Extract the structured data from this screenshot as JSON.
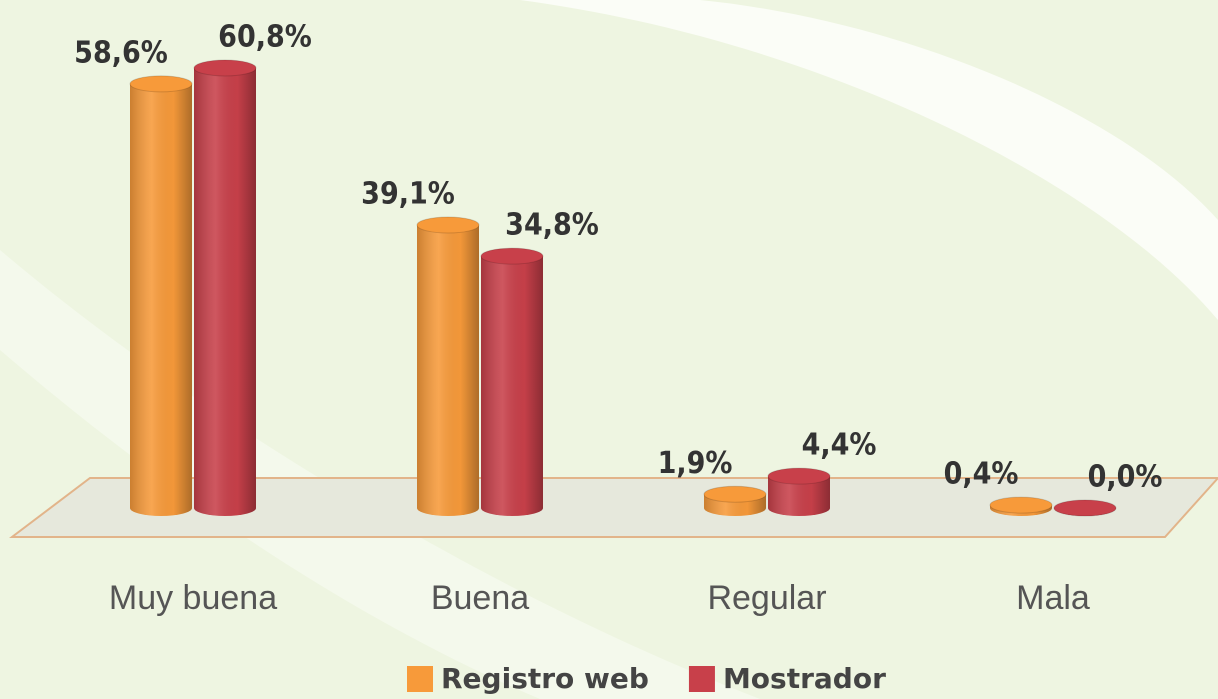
{
  "chart_data": {
    "type": "bar3d",
    "categories": [
      "Muy buena",
      "Buena",
      "Regular",
      "Mala"
    ],
    "series": [
      {
        "name": "Registro web",
        "color": "#f79a3a",
        "values": [
          58.6,
          39.1,
          1.9,
          0.4
        ],
        "value_labels": [
          "58,6%",
          "39,1%",
          "1,9%",
          "0,4%"
        ]
      },
      {
        "name": "Mostrador",
        "color": "#c8404a",
        "values": [
          60.8,
          34.8,
          4.4,
          0.0
        ],
        "value_labels": [
          "60,8%",
          "34,8%",
          "4,4%",
          "0,0%"
        ]
      }
    ],
    "legend": "bottom"
  }
}
